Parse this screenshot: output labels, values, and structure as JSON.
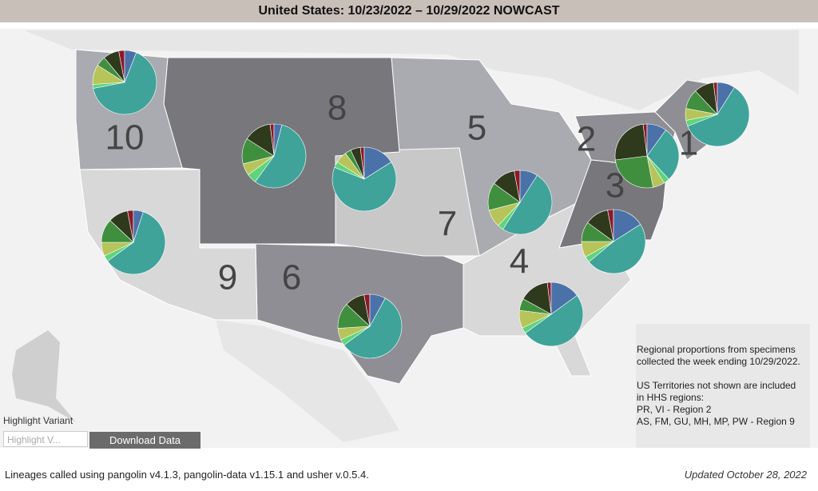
{
  "header": {
    "title": "United States: 10/23/2022 – 10/29/2022 NOWCAST"
  },
  "map": {
    "slice_colors": [
      "#8b1a2b",
      "#4a72a8",
      "#3fa39a",
      "#5fd47a",
      "#b6c45a",
      "#3f8f3f",
      "#2f3a1c"
    ],
    "regions": [
      {
        "label": "1",
        "slices": [
          2,
          9,
          60,
          3,
          6,
          10,
          10
        ]
      },
      {
        "label": "2",
        "slices": [
          2,
          10,
          28,
          3,
          6,
          26,
          25
        ]
      },
      {
        "label": "3",
        "slices": [
          3,
          16,
          48,
          3,
          8,
          10,
          12
        ]
      },
      {
        "label": "4",
        "slices": [
          2,
          15,
          50,
          3,
          9,
          6,
          15
        ]
      },
      {
        "label": "5",
        "slices": [
          3,
          9,
          50,
          3,
          9,
          14,
          12
        ]
      },
      {
        "label": "6",
        "slices": [
          3,
          8,
          57,
          3,
          6,
          13,
          10
        ]
      },
      {
        "label": "7",
        "slices": [
          2,
          16,
          65,
          3,
          6,
          3,
          5
        ]
      },
      {
        "label": "8",
        "slices": [
          2,
          4,
          56,
          5,
          6,
          13,
          14
        ]
      },
      {
        "label": "9",
        "slices": [
          3,
          5,
          60,
          3,
          7,
          12,
          10
        ]
      },
      {
        "label": "10",
        "slices": [
          3,
          6,
          66,
          2,
          10,
          5,
          8
        ]
      }
    ]
  },
  "note": {
    "lines": [
      "Regional proportions from specimens",
      "collected the week ending 10/29/2022.",
      "US Territories not shown are included",
      "in HHS regions:",
      "PR, VI - Region 2",
      "AS, FM, GU, MH, MP, PW - Region 9"
    ]
  },
  "controls": {
    "highlight_label": "Highlight Variant",
    "placeholder": "Highlight V...",
    "button": "Download Data"
  },
  "footer": {
    "credits": "Lineages called using pangolin v4.1.3, pangolin-data v1.15.1 and usher v.0.5.4.",
    "updated": "Updated October 28, 2022"
  }
}
